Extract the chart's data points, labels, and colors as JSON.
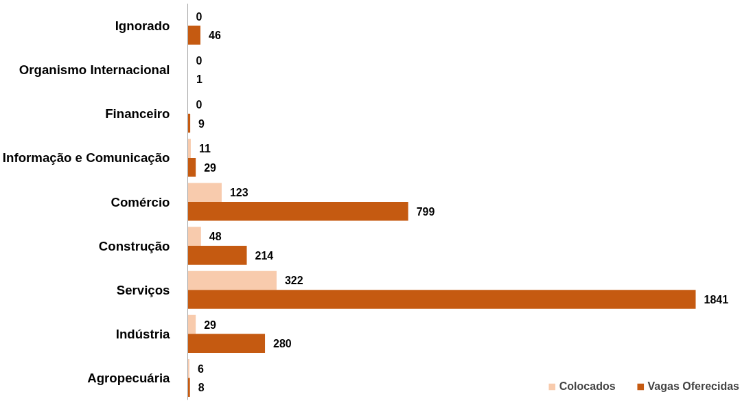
{
  "chart_data": {
    "type": "bar",
    "orientation": "horizontal",
    "categories": [
      "Ignorado",
      "Organismo Internacional",
      "Financeiro",
      "Informação e Comunicação",
      "Comércio",
      "Construção",
      "Serviços",
      "Indústria",
      "Agropecuária"
    ],
    "series": [
      {
        "name": "Colocados",
        "color": "#f8cbad",
        "values": [
          0,
          0,
          0,
          11,
          123,
          48,
          322,
          29,
          6
        ]
      },
      {
        "name": "Vagas Oferecidas",
        "color": "#c55a11",
        "values": [
          46,
          1,
          9,
          29,
          799,
          214,
          1841,
          280,
          8
        ]
      }
    ],
    "tick_labels": "y",
    "data_labels": true,
    "legend": "bottom right",
    "grid": false
  }
}
